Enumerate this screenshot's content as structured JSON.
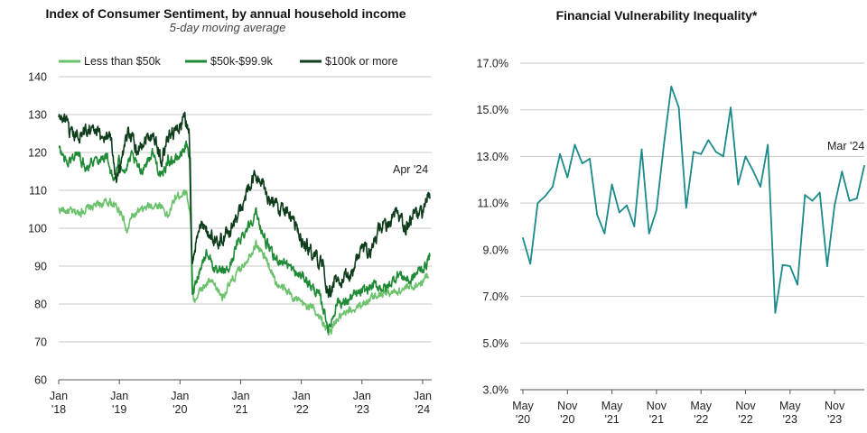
{
  "chart_data": [
    {
      "type": "line",
      "title": "Index of Consumer Sentiment, by annual household income",
      "subtitle": "5-day moving average",
      "annotation": "Apr '24",
      "ylim": [
        60,
        140
      ],
      "yticks": [
        "60",
        "70",
        "80",
        "90",
        "100",
        "110",
        "120",
        "130",
        "140"
      ],
      "xlim": [
        2018.0,
        2024.15
      ],
      "xticks": [
        {
          "year": 2018,
          "label": [
            "Jan",
            "'18"
          ]
        },
        {
          "year": 2019,
          "label": [
            "Jan",
            "'19"
          ]
        },
        {
          "year": 2020,
          "label": [
            "Jan",
            "'20"
          ]
        },
        {
          "year": 2021,
          "label": [
            "Jan",
            "'21"
          ]
        },
        {
          "year": 2022,
          "label": [
            "Jan",
            "'22"
          ]
        },
        {
          "year": 2023,
          "label": [
            "Jan",
            "'23"
          ]
        },
        {
          "year": 2024,
          "label": [
            "Jan",
            "'24"
          ]
        }
      ],
      "grid": true,
      "legend_position": "top",
      "series": [
        {
          "name": "Less than $50k",
          "color": "#6cc26c",
          "noise": 0.8,
          "points": [
            [
              2018.0,
              105
            ],
            [
              2018.3,
              104
            ],
            [
              2018.6,
              106
            ],
            [
              2018.85,
              107
            ],
            [
              2019.05,
              104
            ],
            [
              2019.12,
              98.5
            ],
            [
              2019.2,
              103
            ],
            [
              2019.5,
              106
            ],
            [
              2019.7,
              106
            ],
            [
              2019.8,
              103
            ],
            [
              2019.92,
              108
            ],
            [
              2020.1,
              110
            ],
            [
              2020.17,
              104
            ],
            [
              2020.22,
              80
            ],
            [
              2020.3,
              83
            ],
            [
              2020.5,
              86
            ],
            [
              2020.7,
              82
            ],
            [
              2020.9,
              87
            ],
            [
              2021.15,
              93
            ],
            [
              2021.25,
              96
            ],
            [
              2021.45,
              91
            ],
            [
              2021.6,
              85
            ],
            [
              2021.8,
              83
            ],
            [
              2022.0,
              80
            ],
            [
              2022.2,
              79
            ],
            [
              2022.4,
              74
            ],
            [
              2022.45,
              72
            ],
            [
              2022.6,
              76
            ],
            [
              2022.8,
              78
            ],
            [
              2023.0,
              80
            ],
            [
              2023.3,
              83
            ],
            [
              2023.5,
              83
            ],
            [
              2023.7,
              84
            ],
            [
              2023.9,
              85
            ],
            [
              2024.0,
              86
            ],
            [
              2024.1,
              88
            ]
          ]
        },
        {
          "name": "$50k-$99.9k",
          "color": "#1f8a35",
          "noise": 1.0,
          "points": [
            [
              2018.0,
              121
            ],
            [
              2018.15,
              117
            ],
            [
              2018.3,
              120
            ],
            [
              2018.45,
              116
            ],
            [
              2018.55,
              118
            ],
            [
              2018.8,
              119
            ],
            [
              2018.9,
              112
            ],
            [
              2019.0,
              118
            ],
            [
              2019.1,
              115
            ],
            [
              2019.2,
              119
            ],
            [
              2019.35,
              115
            ],
            [
              2019.55,
              120
            ],
            [
              2019.7,
              113
            ],
            [
              2019.8,
              118
            ],
            [
              2019.95,
              118
            ],
            [
              2020.1,
              122
            ],
            [
              2020.17,
              118
            ],
            [
              2020.2,
              83
            ],
            [
              2020.3,
              88
            ],
            [
              2020.45,
              94
            ],
            [
              2020.6,
              88
            ],
            [
              2020.8,
              89
            ],
            [
              2020.95,
              96
            ],
            [
              2021.1,
              100
            ],
            [
              2021.25,
              104
            ],
            [
              2021.4,
              97
            ],
            [
              2021.55,
              92
            ],
            [
              2021.75,
              91
            ],
            [
              2021.9,
              88
            ],
            [
              2022.05,
              87
            ],
            [
              2022.2,
              84
            ],
            [
              2022.3,
              82
            ],
            [
              2022.4,
              77
            ],
            [
              2022.45,
              73
            ],
            [
              2022.6,
              81
            ],
            [
              2022.7,
              80
            ],
            [
              2022.85,
              82
            ],
            [
              2023.0,
              83
            ],
            [
              2023.2,
              85
            ],
            [
              2023.4,
              84
            ],
            [
              2023.6,
              88
            ],
            [
              2023.8,
              86
            ],
            [
              2023.95,
              89
            ],
            [
              2024.05,
              90
            ],
            [
              2024.12,
              93
            ]
          ]
        },
        {
          "name": "$100k or more",
          "color": "#0f3d1c",
          "noise": 1.4,
          "points": [
            [
              2018.0,
              129
            ],
            [
              2018.1,
              129
            ],
            [
              2018.2,
              124
            ],
            [
              2018.4,
              125
            ],
            [
              2018.5,
              127
            ],
            [
              2018.7,
              124
            ],
            [
              2018.85,
              125
            ],
            [
              2018.95,
              113
            ],
            [
              2019.05,
              118
            ],
            [
              2019.15,
              126
            ],
            [
              2019.3,
              121
            ],
            [
              2019.45,
              124
            ],
            [
              2019.55,
              125
            ],
            [
              2019.7,
              118
            ],
            [
              2019.82,
              125
            ],
            [
              2019.95,
              126
            ],
            [
              2020.08,
              129
            ],
            [
              2020.15,
              126
            ],
            [
              2020.2,
              88
            ],
            [
              2020.3,
              101
            ],
            [
              2020.45,
              99
            ],
            [
              2020.6,
              96
            ],
            [
              2020.75,
              98
            ],
            [
              2020.95,
              103
            ],
            [
              2021.1,
              109
            ],
            [
              2021.25,
              114
            ],
            [
              2021.4,
              110
            ],
            [
              2021.55,
              106
            ],
            [
              2021.75,
              105
            ],
            [
              2021.9,
              100
            ],
            [
              2022.05,
              96
            ],
            [
              2022.2,
              93
            ],
            [
              2022.35,
              90
            ],
            [
              2022.45,
              82
            ],
            [
              2022.55,
              86
            ],
            [
              2022.7,
              86
            ],
            [
              2022.85,
              89
            ],
            [
              2023.0,
              95
            ],
            [
              2023.15,
              94
            ],
            [
              2023.3,
              101
            ],
            [
              2023.45,
              100
            ],
            [
              2023.55,
              104
            ],
            [
              2023.7,
              100
            ],
            [
              2023.85,
              103
            ],
            [
              2024.0,
              104
            ],
            [
              2024.08,
              108
            ],
            [
              2024.12,
              108
            ]
          ]
        }
      ]
    },
    {
      "type": "line",
      "title": "Financial Vulnerability Inequality*",
      "annotation": "Mar '24",
      "ylim": [
        3,
        17
      ],
      "yticks": [
        "3.0%",
        "5.0%",
        "7.0%",
        "9.0%",
        "11.0%",
        "13.0%",
        "15.0%",
        "17.0%"
      ],
      "ytick_values": [
        3,
        5,
        7,
        9,
        11,
        13,
        15,
        17
      ],
      "xticks": [
        {
          "index": 0,
          "label": [
            "May",
            "'20"
          ]
        },
        {
          "index": 6,
          "label": [
            "Nov",
            "'20"
          ]
        },
        {
          "index": 12,
          "label": [
            "May",
            "'21"
          ]
        },
        {
          "index": 18,
          "label": [
            "Nov",
            "'21"
          ]
        },
        {
          "index": 24,
          "label": [
            "May",
            "'22"
          ]
        },
        {
          "index": 30,
          "label": [
            "Nov",
            "'22"
          ]
        },
        {
          "index": 36,
          "label": [
            "May",
            "'23"
          ]
        },
        {
          "index": 42,
          "label": [
            "Nov",
            "'23"
          ]
        }
      ],
      "color": "#1a8a8a",
      "grid": true,
      "x": [
        "May '20",
        "Jun '20",
        "Jul '20",
        "Aug '20",
        "Sep '20",
        "Oct '20",
        "Nov '20",
        "Dec '20",
        "Jan '21",
        "Feb '21",
        "Mar '21",
        "Apr '21",
        "May '21",
        "Jun '21",
        "Jul '21",
        "Aug '21",
        "Sep '21",
        "Oct '21",
        "Nov '21",
        "Dec '21",
        "Jan '22",
        "Feb '22",
        "Mar '22",
        "Apr '22",
        "May '22",
        "Jun '22",
        "Jul '22",
        "Aug '22",
        "Sep '22",
        "Oct '22",
        "Nov '22",
        "Dec '22",
        "Jan '23",
        "Feb '23",
        "Mar '23",
        "Apr '23",
        "May '23",
        "Jun '23",
        "Jul '23",
        "Aug '23",
        "Sep '23",
        "Oct '23",
        "Nov '23",
        "Dec '23",
        "Jan '24",
        "Feb '24",
        "Mar '24"
      ],
      "values": [
        9.5,
        8.4,
        11.0,
        11.3,
        11.7,
        13.1,
        12.1,
        13.5,
        12.7,
        12.9,
        10.5,
        9.7,
        11.8,
        10.6,
        10.9,
        10.0,
        13.3,
        9.7,
        10.7,
        13.5,
        16.0,
        15.1,
        10.8,
        13.2,
        13.1,
        13.7,
        13.2,
        13.0,
        15.1,
        11.8,
        13.0,
        12.4,
        11.7,
        13.5,
        6.3,
        8.35,
        8.3,
        7.5,
        11.35,
        11.1,
        11.45,
        8.3,
        10.9,
        12.35,
        11.1,
        11.2,
        12.6
      ]
    }
  ]
}
